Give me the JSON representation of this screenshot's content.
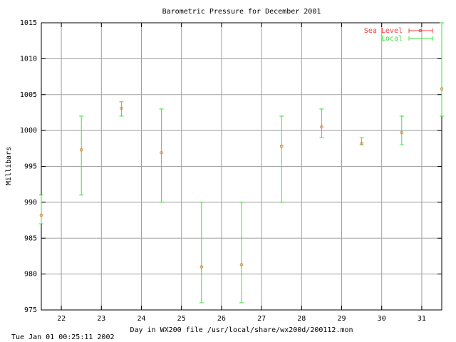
{
  "chart_data": {
    "type": "errorbar",
    "title": "Barometric Pressure for December 2001",
    "x_label": "Day in WX200 file /usr/local/share/wx200d/200112.mon",
    "y_label": "Millibars",
    "timestamp": "Tue Jan 01 00:25:11 2002",
    "xlim": [
      21.5,
      31.5
    ],
    "xticks": [
      22,
      23,
      24,
      25,
      26,
      27,
      28,
      29,
      30,
      31
    ],
    "ylim": [
      975,
      1015
    ],
    "yticks": [
      975,
      980,
      985,
      990,
      995,
      1000,
      1005,
      1010,
      1015
    ],
    "grid": true,
    "legend": "top-right",
    "point_color": "#d08a40",
    "series": [
      {
        "name": "Sea Level",
        "color": "#f03c3c",
        "x": [],
        "values": [],
        "low": [],
        "high": []
      },
      {
        "name": "Local",
        "color": "#3ce03c",
        "x": [
          21.5,
          22.5,
          23.5,
          24.5,
          25.5,
          26.5,
          27.5,
          28.5,
          29.5,
          30.5,
          31.5
        ],
        "values": [
          988.2,
          997.3,
          1003.1,
          996.9,
          981,
          981.3,
          997.8,
          1000.5,
          998.2,
          999.7,
          1005.8
        ],
        "low": [
          987,
          991,
          1002,
          990,
          976,
          976,
          990,
          999,
          998,
          998,
          1002
        ],
        "high": [
          991,
          1002,
          1004,
          1003,
          990,
          990,
          1002,
          1003,
          999,
          1002,
          1015
        ]
      }
    ]
  }
}
